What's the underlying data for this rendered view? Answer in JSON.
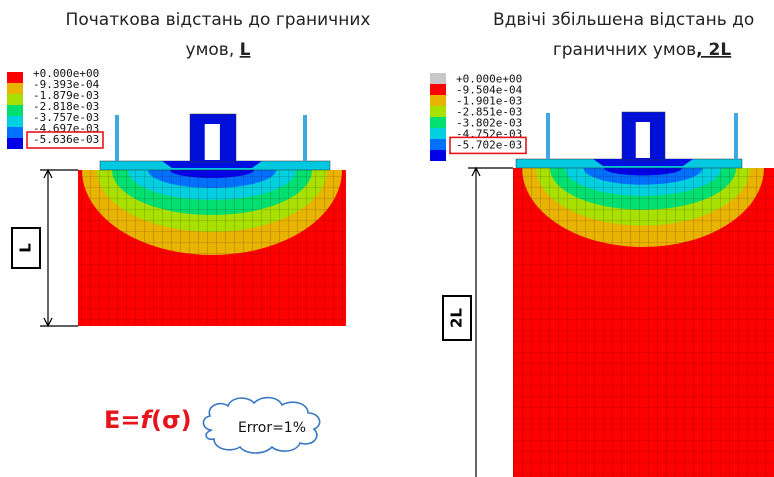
{
  "left": {
    "title_line1": "Початкова відстань до граничних",
    "title_line2": "умов, ",
    "title_symbol": "L",
    "legend": [
      "+0.000e+00",
      "-9.393e-04",
      "-1.879e-03",
      "-2.818e-03",
      "-3.757e-03",
      "-4.697e-03",
      "-5.636e-03"
    ],
    "dimension": "L"
  },
  "right": {
    "title_line1": "Вдвічі збільшена відстань до",
    "title_line2": "граничних умов",
    "title_symbol": ", 2L",
    "legend": [
      "+0.000e+00",
      "-9.504e-04",
      "-1.901e-03",
      "-2.851e-03",
      "-3.802e-03",
      "-4.752e-03",
      "-5.702e-03"
    ],
    "dimension": "2L"
  },
  "formula": {
    "prefix": "E=",
    "function": "f",
    "argument": "(σ)"
  },
  "cloud": "Error=1%"
}
